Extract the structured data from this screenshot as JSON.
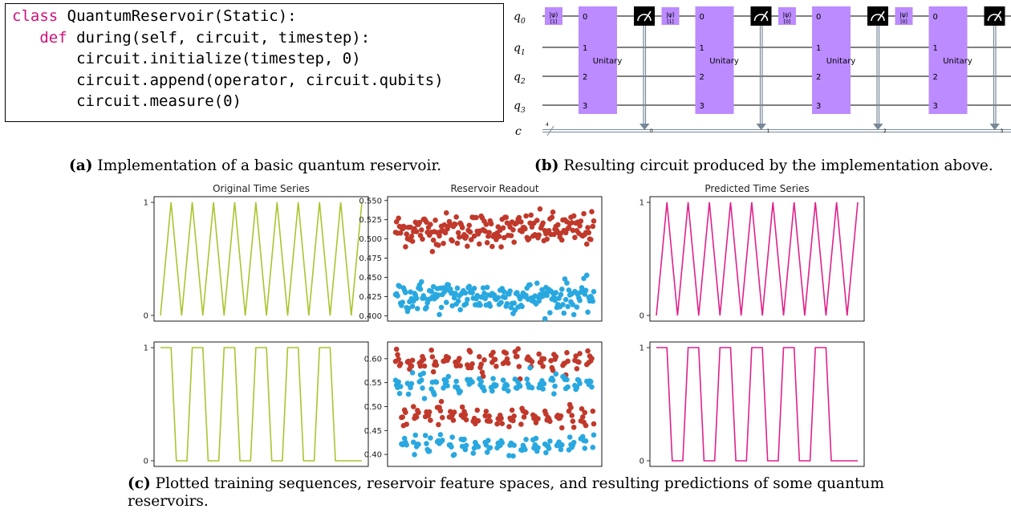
{
  "code": {
    "lines": [
      {
        "kw": "class",
        "rest": " QuantumReservoir(Static):"
      },
      {
        "indent": "   ",
        "kw": "def",
        "rest": " during(self, circuit, timestep):"
      },
      {
        "indent": "       ",
        "kw": "",
        "rest": "circuit.initialize(timestep, 0)"
      },
      {
        "indent": "       ",
        "kw": "",
        "rest": "circuit.append(operator, circuit.qubits)"
      },
      {
        "indent": "       ",
        "kw": "",
        "rest": "circuit.measure(0)"
      }
    ]
  },
  "captions": {
    "a": {
      "label": "(a)",
      "text": " Implementation of a basic quantum reservoir."
    },
    "b": {
      "label": "(b)",
      "text": " Resulting circuit produced by the implementation above."
    },
    "c": {
      "label": "(c)",
      "text": " Plotted training sequences, reservoir feature spaces, and resulting predictions of some quantum",
      "text2": "reservoirs."
    }
  },
  "circuit": {
    "qubits": [
      "q",
      "q",
      "q",
      "q"
    ],
    "qubit_subs": [
      "0",
      "1",
      "2",
      "3"
    ],
    "classical": "c",
    "classical_count": "4",
    "unitary_label": "Unitary",
    "unitary_ports": [
      "0",
      "1",
      "2",
      "3"
    ],
    "init_gates": [
      {
        "label": "|ψ⟩",
        "sub": "[1]"
      },
      {
        "label": "|ψ⟩",
        "sub": "[1]"
      },
      {
        "label": "|ψ⟩",
        "sub": "[0]"
      },
      {
        "label": "|ψ⟩",
        "sub": "[0]"
      }
    ],
    "measure_bits": [
      "0",
      "1",
      "2",
      "3"
    ],
    "colors": {
      "gate": "#bb8bff",
      "measure": "#000000",
      "wire": "#000000",
      "classical_wire": "#778899"
    }
  },
  "plots": {
    "titles": {
      "original": "Original Time Series",
      "readout": "Reservoir Readout",
      "predicted": "Predicted Time Series"
    },
    "colors": {
      "original": "#a9c52f",
      "predicted": "#e0218a",
      "red": "#c0392b",
      "blue": "#29a8e0"
    }
  },
  "chart_data": [
    {
      "type": "line",
      "title": "Original Time Series",
      "x": [
        0,
        1,
        2,
        3,
        4,
        5,
        6,
        7,
        8,
        9,
        10,
        11,
        12,
        13,
        14,
        15,
        16,
        17,
        18,
        19
      ],
      "y": [
        0,
        1,
        0,
        1,
        0,
        1,
        0,
        1,
        0,
        1,
        0,
        1,
        0,
        1,
        0,
        1,
        0,
        1,
        0,
        1
      ],
      "yticks": [
        "0",
        "1"
      ],
      "ylim": [
        -0.05,
        1.05
      ]
    },
    {
      "type": "scatter",
      "title": "Reservoir Readout",
      "yticks": [
        "0.550",
        "0.525",
        "0.500",
        "0.475",
        "0.450",
        "0.425",
        "0.400"
      ],
      "ytick_values": [
        0.55,
        0.525,
        0.5,
        0.475,
        0.45,
        0.425,
        0.4
      ],
      "ylim": [
        0.393,
        0.555
      ],
      "series": [
        {
          "color": "red",
          "center": 0.512,
          "spread": 0.018
        },
        {
          "color": "blue",
          "center": 0.425,
          "spread": 0.017
        }
      ]
    },
    {
      "type": "line",
      "title": "Predicted Time Series",
      "x": [
        0,
        1,
        2,
        3,
        4,
        5,
        6,
        7,
        8,
        9,
        10,
        11,
        12,
        13,
        14,
        15,
        16,
        17,
        18,
        19
      ],
      "y": [
        0,
        1,
        0,
        1,
        0,
        1,
        0,
        1,
        0,
        1,
        0,
        1,
        0,
        1,
        0,
        1,
        0,
        1,
        0,
        1
      ],
      "yticks": [
        "0",
        "1"
      ],
      "ylim": [
        -0.05,
        1.05
      ]
    },
    {
      "type": "line",
      "x": [
        0,
        1,
        2,
        3,
        4,
        5,
        6,
        7,
        8,
        9,
        10,
        11,
        12,
        13,
        14,
        15,
        16,
        17,
        18,
        19,
        20,
        21,
        22,
        23,
        24,
        25,
        26,
        27,
        28,
        29,
        30,
        31,
        32,
        33,
        34,
        35,
        36,
        37,
        38
      ],
      "y": [
        1,
        1,
        1,
        0,
        0,
        0,
        1,
        1,
        1,
        0,
        0,
        0,
        1,
        1,
        1,
        0,
        0,
        0,
        1,
        1,
        1,
        0,
        0,
        0,
        1,
        1,
        1,
        0,
        0,
        0,
        1,
        1,
        1,
        0,
        0,
        0,
        0,
        0,
        0
      ],
      "yticks": [
        "0",
        "1"
      ],
      "ylim": [
        -0.05,
        1.05
      ]
    },
    {
      "type": "scatter",
      "yticks": [
        "0.60",
        "0.55",
        "0.50",
        "0.45",
        "0.40"
      ],
      "ytick_values": [
        0.6,
        0.55,
        0.5,
        0.45,
        0.4
      ],
      "ylim": [
        0.375,
        0.635
      ],
      "series": [
        {
          "color": "red",
          "bands": [
            0.595,
            0.48
          ]
        },
        {
          "color": "blue",
          "bands": [
            0.545,
            0.42
          ]
        }
      ]
    },
    {
      "type": "line",
      "x": [
        0,
        1,
        2,
        3,
        4,
        5,
        6,
        7,
        8,
        9,
        10,
        11,
        12,
        13,
        14,
        15,
        16,
        17,
        18,
        19,
        20,
        21,
        22,
        23,
        24,
        25,
        26,
        27,
        28,
        29,
        30,
        31,
        32,
        33,
        34,
        35,
        36,
        37,
        38
      ],
      "y": [
        1,
        1,
        1,
        0,
        0,
        0,
        1,
        1,
        1,
        0,
        0,
        0,
        1,
        1,
        1,
        0,
        0,
        0,
        1,
        1,
        1,
        0,
        0,
        0,
        1,
        1,
        1,
        0,
        0,
        0,
        1,
        1,
        1,
        0,
        0,
        0,
        0,
        0,
        0
      ],
      "yticks": [
        "0",
        "1"
      ],
      "ylim": [
        -0.05,
        1.05
      ]
    }
  ]
}
